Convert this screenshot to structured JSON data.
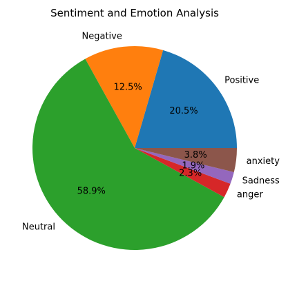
{
  "chart_data": {
    "type": "pie",
    "title": "Sentiment and Emotion Analysis",
    "slices": [
      {
        "label": "Positive",
        "value": 20.5,
        "pct_label": "20.5%",
        "color": "#1f77b4"
      },
      {
        "label": "Negative",
        "value": 12.5,
        "pct_label": "12.5%",
        "color": "#ff7f0e"
      },
      {
        "label": "Neutral",
        "value": 58.9,
        "pct_label": "58.9%",
        "color": "#2ca02c"
      },
      {
        "label": "anger",
        "value": 2.3,
        "pct_label": "2.3%",
        "color": "#d62728"
      },
      {
        "label": "Sadness",
        "value": 1.9,
        "pct_label": "1.9%",
        "color": "#9467bd"
      },
      {
        "label": "anxiety",
        "value": 3.8,
        "pct_label": "3.8%",
        "color": "#8c564b"
      }
    ],
    "start_angle_deg": 0,
    "direction": "counterclockwise",
    "legend": "none"
  }
}
